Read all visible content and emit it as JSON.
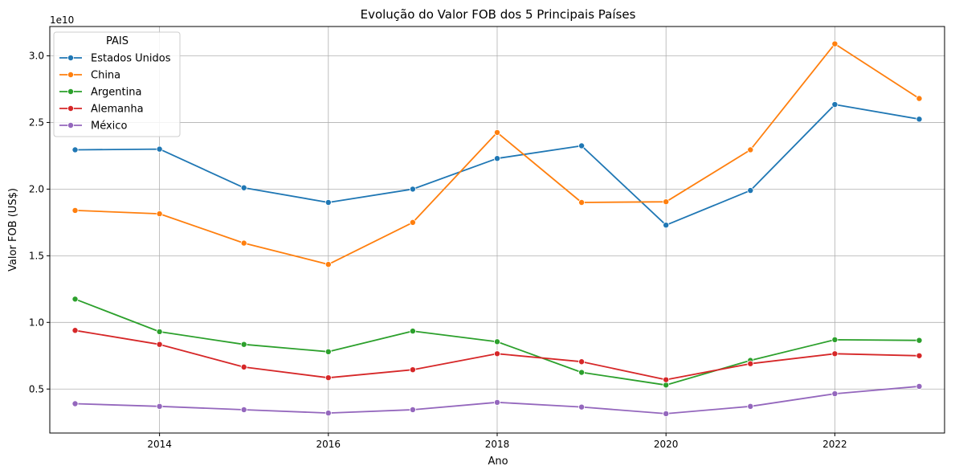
{
  "chart_data": {
    "type": "line",
    "title": "Evolução do Valor FOB dos 5 Principais Países",
    "xlabel": "Ano",
    "ylabel": "Valor FOB (US$)",
    "y_offset_text": "1e10",
    "xlim": [
      2012.7,
      2023.3
    ],
    "ylim": [
      0.17,
      3.22
    ],
    "y_multiplier": 10000000000.0,
    "x_ticks": [
      2014,
      2016,
      2018,
      2020,
      2022
    ],
    "y_ticks": [
      0.5,
      1.0,
      1.5,
      2.0,
      2.5,
      3.0
    ],
    "y_tick_labels": [
      "0.5",
      "1.0",
      "1.5",
      "2.0",
      "2.5",
      "3.0"
    ],
    "grid": true,
    "legend": {
      "title": "PAIS",
      "placement": "top-left"
    },
    "x": [
      2013,
      2014,
      2015,
      2016,
      2017,
      2018,
      2019,
      2020,
      2021,
      2022,
      2023
    ],
    "series": [
      {
        "name": "Estados Unidos",
        "color": "#1f77b4",
        "values": [
          2.295,
          2.3,
          2.01,
          1.9,
          2.0,
          2.23,
          2.325,
          1.73,
          1.99,
          2.635,
          2.525
        ]
      },
      {
        "name": "China",
        "color": "#ff7f0e",
        "values": [
          1.84,
          1.815,
          1.595,
          1.435,
          1.75,
          2.425,
          1.9,
          1.905,
          2.295,
          3.09,
          2.68
        ]
      },
      {
        "name": "Argentina",
        "color": "#2ca02c",
        "values": [
          1.175,
          0.93,
          0.835,
          0.78,
          0.935,
          0.855,
          0.625,
          0.53,
          0.715,
          0.87,
          0.865
        ]
      },
      {
        "name": "Alemanha",
        "color": "#d62728",
        "values": [
          0.94,
          0.835,
          0.665,
          0.585,
          0.645,
          0.765,
          0.705,
          0.57,
          0.69,
          0.765,
          0.75
        ]
      },
      {
        "name": "México",
        "color": "#9467bd",
        "values": [
          0.39,
          0.37,
          0.345,
          0.32,
          0.345,
          0.4,
          0.365,
          0.315,
          0.37,
          0.465,
          0.52
        ]
      }
    ]
  }
}
